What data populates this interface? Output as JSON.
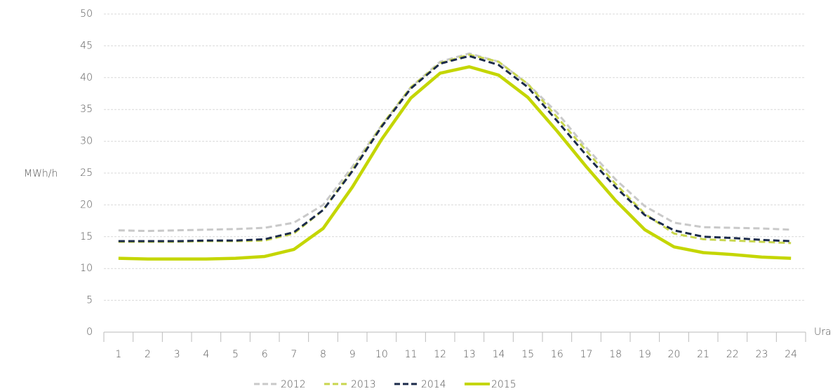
{
  "chart_data": {
    "type": "line",
    "y_label": "MWh/h",
    "x_label": "Ura",
    "categories": [
      "1",
      "2",
      "3",
      "4",
      "5",
      "6",
      "7",
      "8",
      "9",
      "10",
      "11",
      "12",
      "13",
      "14",
      "15",
      "16",
      "17",
      "18",
      "19",
      "20",
      "21",
      "22",
      "23",
      "24"
    ],
    "ylim": [
      0,
      50
    ],
    "yticks": [
      0,
      5,
      10,
      15,
      20,
      25,
      30,
      35,
      40,
      45,
      50
    ],
    "grid": true,
    "legend": "bottom",
    "series": [
      {
        "name": "2012",
        "color": "#c9c9c9",
        "style": "dashed",
        "values": [
          16,
          15.9,
          16,
          16.1,
          16.2,
          16.4,
          17.2,
          20,
          26,
          32.5,
          38.5,
          42.5,
          43.8,
          42.5,
          39,
          34.5,
          29,
          24,
          19.8,
          17.2,
          16.5,
          16.4,
          16.3,
          16.1
        ]
      },
      {
        "name": "2013",
        "color": "#c8d64e",
        "style": "dashed",
        "values": [
          14.2,
          14.2,
          14.2,
          14.3,
          14.3,
          14.4,
          15.5,
          19.2,
          25.5,
          32.5,
          38.5,
          42.3,
          43.6,
          42.5,
          39,
          33.8,
          28.5,
          23.3,
          18.6,
          15.5,
          14.6,
          14.4,
          14.2,
          14
        ]
      },
      {
        "name": "2014",
        "color": "#1b2a4a",
        "style": "dashed",
        "values": [
          14.3,
          14.3,
          14.3,
          14.4,
          14.4,
          14.6,
          15.7,
          19.2,
          25.3,
          32.3,
          38.3,
          42.2,
          43.4,
          42,
          38.5,
          33.2,
          27.8,
          22.8,
          18.4,
          16,
          15,
          14.8,
          14.5,
          14.3
        ]
      },
      {
        "name": "2015",
        "color": "#c4d600",
        "style": "solid",
        "values": [
          11.6,
          11.5,
          11.5,
          11.5,
          11.6,
          11.9,
          13,
          16.3,
          22.8,
          30.3,
          36.8,
          40.7,
          41.7,
          40.4,
          36.9,
          31.6,
          26,
          20.7,
          16.1,
          13.4,
          12.5,
          12.2,
          11.8,
          11.6
        ]
      }
    ]
  }
}
